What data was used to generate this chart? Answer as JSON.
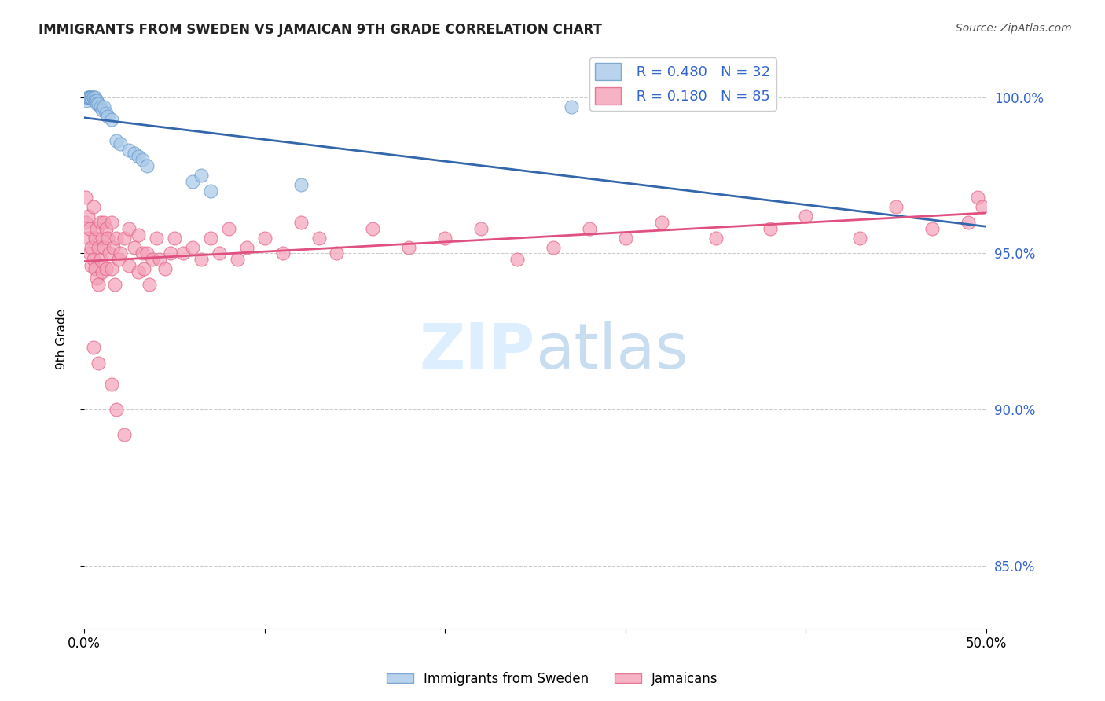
{
  "title": "IMMIGRANTS FROM SWEDEN VS JAMAICAN 9TH GRADE CORRELATION CHART",
  "source": "Source: ZipAtlas.com",
  "ylabel": "9th Grade",
  "xlim": [
    0.0,
    0.5
  ],
  "ylim": [
    0.83,
    1.015
  ],
  "yticks": [
    0.85,
    0.9,
    0.95,
    1.0
  ],
  "ytick_labels": [
    "85.0%",
    "90.0%",
    "95.0%",
    "100.0%"
  ],
  "legend_blue_r": "R = 0.480",
  "legend_blue_n": "N = 32",
  "legend_pink_r": "R = 0.180",
  "legend_pink_n": "N = 85",
  "blue_color": "#a8c8e8",
  "blue_edge_color": "#6699cc",
  "pink_color": "#f4a0b8",
  "pink_edge_color": "#e06080",
  "blue_line_color": "#3366aa",
  "pink_line_color": "#e05080",
  "watermark_color": "#ddeeff",
  "blue_scatter_x": [
    0.001,
    0.002,
    0.002,
    0.003,
    0.003,
    0.004,
    0.004,
    0.005,
    0.005,
    0.006,
    0.006,
    0.007,
    0.007,
    0.008,
    0.009,
    0.01,
    0.011,
    0.012,
    0.013,
    0.015,
    0.018,
    0.02,
    0.025,
    0.028,
    0.03,
    0.032,
    0.035,
    0.06,
    0.065,
    0.07,
    0.12,
    0.27
  ],
  "blue_scatter_y": [
    0.999,
    1.0,
    1.0,
    1.0,
    1.0,
    1.0,
    1.0,
    1.0,
    1.0,
    1.0,
    0.999,
    0.999,
    0.998,
    0.998,
    0.997,
    0.996,
    0.997,
    0.995,
    0.994,
    0.993,
    0.986,
    0.985,
    0.983,
    0.982,
    0.981,
    0.98,
    0.978,
    0.973,
    0.975,
    0.97,
    0.972,
    0.997
  ],
  "pink_scatter_x": [
    0.001,
    0.001,
    0.002,
    0.002,
    0.003,
    0.003,
    0.004,
    0.004,
    0.005,
    0.005,
    0.006,
    0.006,
    0.007,
    0.007,
    0.008,
    0.008,
    0.009,
    0.009,
    0.01,
    0.01,
    0.011,
    0.011,
    0.012,
    0.012,
    0.013,
    0.014,
    0.015,
    0.015,
    0.016,
    0.017,
    0.018,
    0.019,
    0.02,
    0.022,
    0.025,
    0.025,
    0.028,
    0.03,
    0.03,
    0.032,
    0.033,
    0.035,
    0.036,
    0.038,
    0.04,
    0.042,
    0.045,
    0.048,
    0.05,
    0.055,
    0.06,
    0.065,
    0.07,
    0.075,
    0.08,
    0.085,
    0.09,
    0.1,
    0.11,
    0.12,
    0.13,
    0.14,
    0.16,
    0.18,
    0.2,
    0.22,
    0.24,
    0.26,
    0.28,
    0.3,
    0.32,
    0.35,
    0.38,
    0.4,
    0.43,
    0.45,
    0.47,
    0.49,
    0.495,
    0.498,
    0.005,
    0.008,
    0.015,
    0.018,
    0.022
  ],
  "pink_scatter_y": [
    0.968,
    0.96,
    0.962,
    0.955,
    0.958,
    0.95,
    0.952,
    0.946,
    0.965,
    0.948,
    0.955,
    0.945,
    0.958,
    0.942,
    0.952,
    0.94,
    0.96,
    0.948,
    0.955,
    0.944,
    0.96,
    0.952,
    0.958,
    0.945,
    0.955,
    0.95,
    0.96,
    0.945,
    0.952,
    0.94,
    0.955,
    0.948,
    0.95,
    0.955,
    0.958,
    0.946,
    0.952,
    0.956,
    0.944,
    0.95,
    0.945,
    0.95,
    0.94,
    0.948,
    0.955,
    0.948,
    0.945,
    0.95,
    0.955,
    0.95,
    0.952,
    0.948,
    0.955,
    0.95,
    0.958,
    0.948,
    0.952,
    0.955,
    0.95,
    0.96,
    0.955,
    0.95,
    0.958,
    0.952,
    0.955,
    0.958,
    0.948,
    0.952,
    0.958,
    0.955,
    0.96,
    0.955,
    0.958,
    0.962,
    0.955,
    0.965,
    0.958,
    0.96,
    0.968,
    0.965,
    0.92,
    0.915,
    0.908,
    0.9,
    0.892
  ]
}
